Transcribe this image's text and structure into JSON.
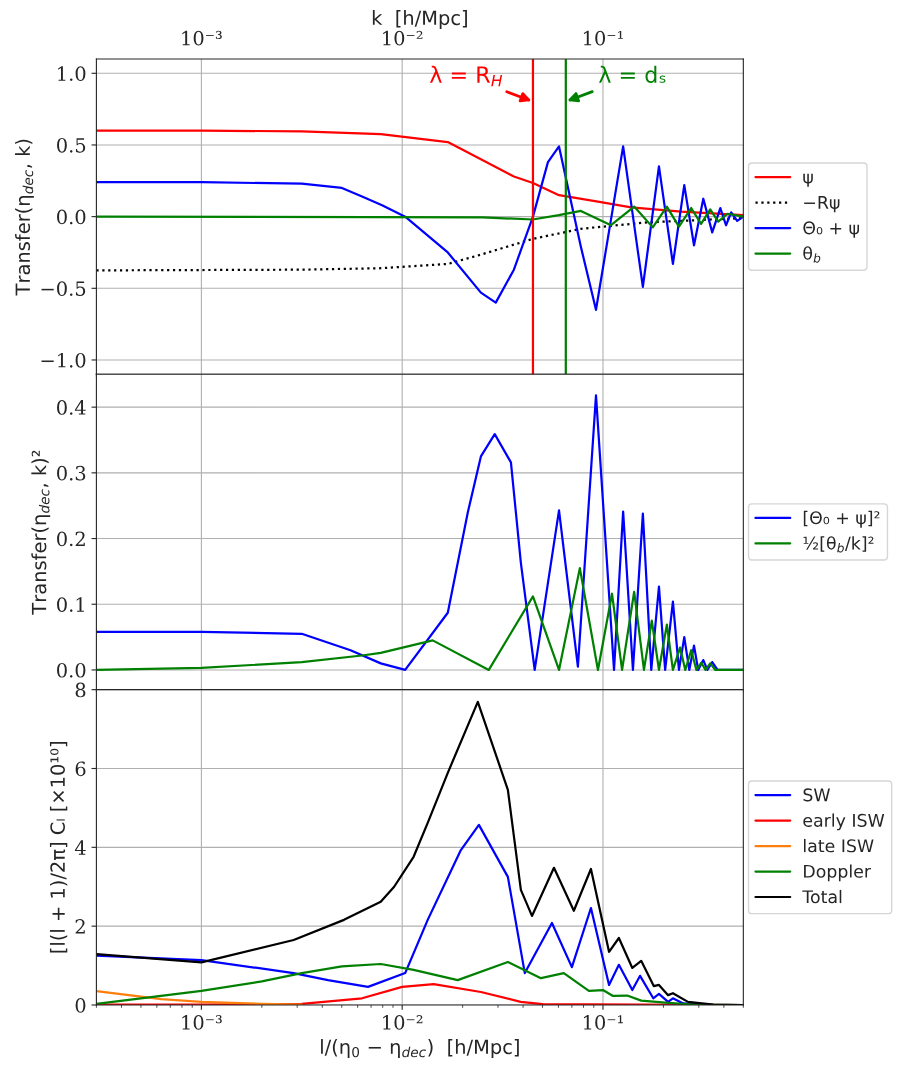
{
  "chart_data": [
    {
      "type": "line",
      "ylabel": "Transfer(η$_{dec}$, k)",
      "x2label": "k  [h/Mpc]",
      "log": "x",
      "grid": true,
      "legend": "right",
      "xlim": [
        0.0003,
        0.5
      ],
      "ylim": [
        -1.1,
        1.1
      ],
      "xticks": [
        {
          "value": 0.001,
          "label": "10⁻³"
        },
        {
          "value": 0.01,
          "label": "10⁻²"
        },
        {
          "value": 0.1,
          "label": "10⁻¹"
        }
      ],
      "yticks": [
        {
          "value": -1.0,
          "label": "−1.0"
        },
        {
          "value": -0.5,
          "label": "−0.5"
        },
        {
          "value": 0,
          "label": "0.0"
        },
        0.5,
        {
          "value": 1,
          "label": "1.0"
        }
      ],
      "ref_lines": [
        {
          "axis": "x",
          "value": 0.0448,
          "label": "λ = R$_{H}$",
          "color": "#ff0000"
        },
        {
          "axis": "x",
          "value": 0.0653,
          "label": "λ = dₛ",
          "color": "#008000"
        }
      ],
      "series": [
        {
          "name": "ψ",
          "color": "#ff0000",
          "x": [
            0.0003,
            0.001,
            0.00316,
            0.00782,
            0.01687,
            0.02466,
            0.036,
            0.0448,
            0.0604,
            0.0944,
            0.138,
            0.245,
            0.5
          ],
          "values": [
            0.6,
            0.6,
            0.595,
            0.575,
            0.52,
            0.4,
            0.28,
            0.235,
            0.15,
            0.105,
            0.065,
            0.035,
            0.01
          ]
        },
        {
          "name": "−Rψ",
          "color": "#000000",
          "line_style": "dotted",
          "x": [
            0.0003,
            0.00316,
            0.00782,
            0.01687,
            0.02466,
            0.0448,
            0.0776,
            0.166,
            0.5
          ],
          "values": [
            -0.375,
            -0.37,
            -0.36,
            -0.33,
            -0.265,
            -0.155,
            -0.085,
            -0.04,
            -0.01
          ]
        },
        {
          "name": "Θ₀ + ψ",
          "color": "#0000ff",
          "x": [
            0.0003,
            0.001,
            0.00316,
            0.00501,
            0.00631,
            0.00794,
            0.01035,
            0.01687,
            0.02466,
            0.02924,
            0.036,
            0.0448,
            0.0532,
            0.0604,
            0.0776,
            0.0923,
            0.126,
            0.158,
            0.19,
            0.223,
            0.254,
            0.284,
            0.316,
            0.35,
            0.384,
            0.41,
            0.435,
            0.466,
            0.5
          ],
          "values": [
            0.24,
            0.24,
            0.23,
            0.2,
            0.14,
            0.08,
            0.0,
            -0.25,
            -0.53,
            -0.6,
            -0.37,
            0.0,
            0.38,
            0.49,
            -0.21,
            -0.65,
            0.49,
            -0.49,
            0.35,
            -0.33,
            0.22,
            -0.2,
            0.125,
            -0.11,
            0.06,
            -0.06,
            0.03,
            -0.03,
            0.0
          ]
        },
        {
          "name": "θ$_{b}$",
          "color": "#008000",
          "x": [
            0.0003,
            0.0251,
            0.0447,
            0.0603,
            0.0776,
            0.1096,
            0.143,
            0.177,
            0.208,
            0.239,
            0.275,
            0.308,
            0.342,
            0.375,
            0.417,
            0.5
          ],
          "values": [
            0.0,
            -0.005,
            -0.02,
            0.01,
            0.04,
            -0.06,
            0.07,
            -0.075,
            0.07,
            -0.07,
            0.06,
            -0.05,
            0.05,
            -0.035,
            0.02,
            0.0
          ]
        }
      ]
    },
    {
      "type": "line",
      "ylabel": "Transfer(η$_{dec}$, k)²",
      "log": "x",
      "grid": true,
      "legend": "right",
      "tick_labels": "y",
      "xlim": [
        0.0003,
        0.5
      ],
      "ylim": [
        -0.03,
        0.45
      ],
      "xticks": [
        {
          "value": 0.001,
          "label": null
        },
        {
          "value": 0.01,
          "label": null
        },
        {
          "value": 0.1,
          "label": null
        }
      ],
      "yticks": [
        {
          "value": 0,
          "label": "0.0"
        },
        0.1,
        0.2,
        0.3,
        0.4
      ],
      "series": [
        {
          "name": "[Θ₀ + ψ]²",
          "color": "#0000ff",
          "x": [
            0.0003,
            0.001,
            0.00316,
            0.00553,
            0.00782,
            0.01035,
            0.01687,
            0.02123,
            0.02466,
            0.0289,
            0.0348,
            0.039,
            0.0457,
            0.0604,
            0.075,
            0.0923,
            0.1135,
            0.126,
            0.141,
            0.158,
            0.174,
            0.19,
            0.204,
            0.223,
            0.239,
            0.254,
            0.269,
            0.284,
            0.298,
            0.316,
            0.331,
            0.35,
            0.372,
            0.5
          ],
          "values": [
            0.058,
            0.058,
            0.055,
            0.03,
            0.01,
            0.0,
            0.087,
            0.24,
            0.325,
            0.359,
            0.316,
            0.163,
            0.0,
            0.243,
            0.005,
            0.418,
            0.0,
            0.241,
            0.0,
            0.238,
            0.0,
            0.127,
            0.0,
            0.104,
            0.0,
            0.05,
            0.0,
            0.037,
            0.0,
            0.015,
            0.0,
            0.012,
            0.0,
            0.0
          ]
        },
        {
          "name": "½[θ$_{b}$/k]²",
          "color": "#008000",
          "x": [
            0.0003,
            0.001,
            0.00316,
            0.00631,
            0.00782,
            0.01419,
            0.027,
            0.0448,
            0.0604,
            0.0767,
            0.0944,
            0.1109,
            0.1245,
            0.143,
            0.16,
            0.175,
            0.19,
            0.208,
            0.223,
            0.242,
            0.257,
            0.275,
            0.292,
            0.309,
            0.324,
            0.342,
            0.363,
            0.5
          ],
          "values": [
            0.0,
            0.003,
            0.012,
            0.022,
            0.026,
            0.045,
            0.0,
            0.112,
            0.0,
            0.155,
            0.0,
            0.116,
            0.0,
            0.119,
            0.0,
            0.075,
            0.0,
            0.069,
            0.0,
            0.034,
            0.0,
            0.03,
            0.0,
            0.011,
            0.0,
            0.01,
            0.0,
            0.0
          ]
        }
      ]
    },
    {
      "type": "line",
      "xlabel": "l/(η$_{0}$ − η$_{dec}$)  [h/Mpc]",
      "ylabel": "[l(l + 1)/2π] Cₗ [×10¹⁰]",
      "log": "x",
      "grid": true,
      "legend": "right",
      "xlim": [
        0.0003,
        0.5
      ],
      "ylim": [
        0,
        8
      ],
      "xticks": [
        {
          "value": 0.001,
          "label": "10⁻³"
        },
        {
          "value": 0.01,
          "label": "10⁻²"
        },
        {
          "value": 0.1,
          "label": "10⁻¹"
        }
      ],
      "yticks": [
        0,
        2,
        4,
        6,
        8
      ],
      "series": [
        {
          "name": "SW",
          "color": "#0000ff",
          "x": [
            0.0003,
            0.001,
            0.00288,
            0.00427,
            0.00676,
            0.01035,
            0.0134,
            0.0196,
            0.0241,
            0.0336,
            0.0408,
            0.0557,
            0.07,
            0.0871,
            0.1072,
            0.12,
            0.14,
            0.153,
            0.178,
            0.19,
            0.211,
            0.223,
            0.251,
            0.355,
            0.5
          ],
          "values": [
            1.25,
            1.14,
            0.81,
            0.63,
            0.46,
            0.81,
            2.16,
            3.93,
            4.57,
            3.25,
            0.81,
            2.08,
            0.96,
            2.46,
            0.51,
            1.02,
            0.38,
            0.74,
            0.17,
            0.28,
            0.08,
            0.17,
            0.04,
            0.0,
            0.0
          ]
        },
        {
          "name": "early ISW",
          "color": "#ff0000",
          "x": [
            0.0003,
            0.001,
            0.00316,
            0.00631,
            0.01,
            0.01435,
            0.02466,
            0.0389,
            0.0501,
            0.5
          ],
          "values": [
            0.01,
            0.01,
            0.03,
            0.17,
            0.46,
            0.53,
            0.33,
            0.08,
            0.02,
            0.0
          ]
        },
        {
          "name": "late ISW",
          "color": "#ff7f0e",
          "x": [
            0.0003,
            0.000631,
            0.001,
            0.002,
            0.00316
          ],
          "values": [
            0.35,
            0.15,
            0.08,
            0.03,
            0.01
          ]
        },
        {
          "name": "Doppler",
          "color": "#008000",
          "x": [
            0.0003,
            0.001,
            0.002,
            0.00316,
            0.00501,
            0.00782,
            0.0114,
            0.0189,
            0.0336,
            0.0491,
            0.0638,
            0.0851,
            0.1,
            0.1122,
            0.132,
            0.155,
            0.204,
            0.282,
            0.5
          ],
          "values": [
            0.03,
            0.36,
            0.6,
            0.81,
            0.98,
            1.04,
            0.89,
            0.63,
            1.09,
            0.68,
            0.81,
            0.36,
            0.38,
            0.23,
            0.24,
            0.11,
            0.06,
            0.01,
            0.0
          ]
        },
        {
          "name": "Total",
          "color": "#000000",
          "x": [
            0.0003,
            0.001,
            0.00288,
            0.00513,
            0.00782,
            0.00912,
            0.0114,
            0.0134,
            0.01687,
            0.0238,
            0.0336,
            0.039,
            0.0443,
            0.057,
            0.0716,
            0.0871,
            0.1072,
            0.12,
            0.14,
            0.155,
            0.179,
            0.19,
            0.211,
            0.223,
            0.265,
            0.355,
            0.5
          ],
          "values": [
            1.29,
            1.08,
            1.65,
            2.16,
            2.62,
            3.0,
            3.76,
            4.62,
            5.89,
            7.69,
            5.46,
            2.92,
            2.26,
            3.48,
            2.39,
            3.45,
            1.35,
            1.7,
            0.94,
            1.12,
            0.48,
            0.51,
            0.25,
            0.3,
            0.08,
            0.01,
            0.0
          ]
        }
      ]
    }
  ]
}
